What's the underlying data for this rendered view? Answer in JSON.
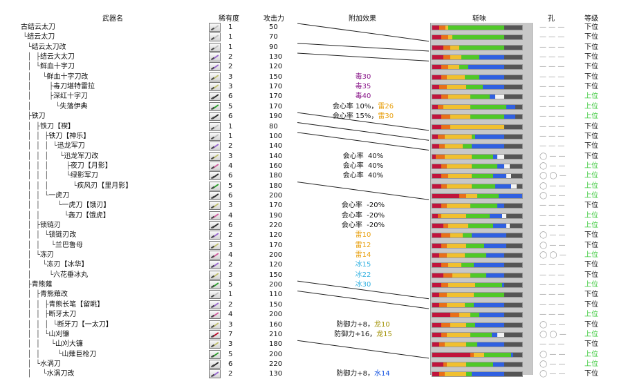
{
  "headers": {
    "name": "武器名",
    "rarity": "稀有度",
    "attack": "攻击力",
    "effect": "附加效果",
    "sharpness": "斩味",
    "slots": "孔",
    "rank": "等级"
  },
  "colors": {
    "red": "#c0143c",
    "orange": "#e8701a",
    "yellow": "#f0c030",
    "green": "#50c828",
    "blue": "#3060e0",
    "white": "#f4f4f4",
    "gray": "#555555",
    "upper": "#37c837",
    "poison": "#8b1a8b",
    "thunder": "#e8a010",
    "ice": "#30b0e0",
    "dragon": "#a09000",
    "water": "#1050e0"
  },
  "rows": [
    {
      "tree": "",
      "name": "古结云太刀",
      "rarity": "1",
      "attack": "50",
      "effect": [],
      "sharp": [
        8,
        7,
        3,
        62
      ],
      "slots": "— — —",
      "rank": "下位",
      "icon": "#c0c0c0"
    },
    {
      "tree": " └",
      "name": "结云太刀",
      "rarity": "1",
      "attack": "70",
      "effect": [],
      "sharp": [
        10,
        8,
        4,
        58
      ],
      "slots": "— — —",
      "rank": "下位",
      "icon": "#c0c0c0"
    },
    {
      "tree": "   └",
      "name": "结云太刀改",
      "rarity": "1",
      "attack": "90",
      "effect": [],
      "sharp": [
        12,
        8,
        10,
        50
      ],
      "slots": "— — —",
      "rank": "下位",
      "icon": "#c0c0c0"
    },
    {
      "tree": "   │  ├",
      "name": "结云大太刀",
      "rarity": "2",
      "attack": "130",
      "effect": [],
      "sharp": [
        12,
        8,
        12,
        20,
        28
      ],
      "slots": "— — —",
      "rank": "下位",
      "icon": "#9a6ad0"
    },
    {
      "tree": "   │  └",
      "name": "鲜血十字刀",
      "rarity": "2",
      "attack": "120",
      "effect": [],
      "sharp": [
        10,
        8,
        12,
        10,
        40
      ],
      "slots": "— — —",
      "rank": "下位",
      "icon": "#9a6ad0"
    },
    {
      "tree": "   │     └",
      "name": "鲜血十字刀改",
      "rarity": "3",
      "attack": "150",
      "effect": [
        {
          "t": "毒30",
          "c": "poison"
        }
      ],
      "sharp": [
        10,
        6,
        20,
        16,
        28
      ],
      "slots": "— — —",
      "rank": "下位",
      "icon": "#c0c070"
    },
    {
      "tree": "   │        ├",
      "name": "毒刀堪特雷拉",
      "rarity": "3",
      "attack": "170",
      "effect": [
        {
          "t": "毒35",
          "c": "poison"
        }
      ],
      "sharp": [
        8,
        8,
        22,
        18,
        24
      ],
      "slots": "— — —",
      "rank": "下位",
      "icon": "#c0c070"
    },
    {
      "tree": "   │        ├",
      "name": "深红十字刀",
      "rarity": "6",
      "attack": "170",
      "effect": [
        {
          "t": "毒40",
          "c": "poison"
        }
      ],
      "sharp": [
        10,
        8,
        24,
        22,
        6,
        10
      ],
      "slots": "— — —",
      "rank": "上位",
      "icon": "#303030"
    },
    {
      "tree": "   │           └",
      "name": "失落伊典",
      "rarity": "5",
      "attack": "170",
      "effect": [
        {
          "t": "会心率 10%，",
          "c": ""
        },
        {
          "t": "雷26",
          "c": "thunder"
        }
      ],
      "sharp": [
        6,
        6,
        30,
        40,
        10
      ],
      "slots": "— — —",
      "rank": "上位",
      "icon": "#30a030"
    },
    {
      "tree": "   ├",
      "name": "铁刀",
      "rarity": "6",
      "attack": "190",
      "effect": [
        {
          "t": "会心率 15%，",
          "c": ""
        },
        {
          "t": "雷30",
          "c": "thunder"
        }
      ],
      "sharp": [
        10,
        10,
        22,
        38,
        12
      ],
      "slots": "— — —",
      "rank": "上位",
      "icon": "#303030"
    },
    {
      "tree": "   │  ├",
      "name": "铁刀【禊】",
      "rarity": "1",
      "attack": "80",
      "effect": [],
      "sharp": [
        10,
        10,
        60
      ],
      "slots": "— — —",
      "rank": "下位",
      "icon": "#c0c0c0"
    },
    {
      "tree": "   │  │  ├",
      "name": "铁刀【神乐】",
      "rarity": "1",
      "attack": "100",
      "effect": [],
      "sharp": [
        6,
        8,
        30,
        4,
        32
      ],
      "slots": "— — —",
      "rank": "下位",
      "icon": "#c0c0c0"
    },
    {
      "tree": "   │  │  │  └",
      "name": "迅龙军刀",
      "rarity": "2",
      "attack": "140",
      "effect": [],
      "sharp": [
        8,
        6,
        20,
        10,
        36
      ],
      "slots": "— — —",
      "rank": "下位",
      "icon": "#9a6ad0"
    },
    {
      "tree": "   │  │  │     └",
      "name": "迅龙军刀改",
      "rarity": "3",
      "attack": "140",
      "effect": [
        {
          "t": "会心率  40%",
          "c": ""
        }
      ],
      "sharp": [
        4,
        10,
        30,
        24,
        4,
        8
      ],
      "slots": "◯ — —",
      "rank": "下位",
      "icon": "#c0c070"
    },
    {
      "tree": "   │  │  │        ├",
      "name": "夜刀【月影】",
      "rarity": "4",
      "attack": "160",
      "effect": [
        {
          "t": "会心率  40%",
          "c": ""
        }
      ],
      "sharp": [
        10,
        6,
        28,
        28,
        8,
        6
      ],
      "slots": "◯ — —",
      "rank": "上位",
      "icon": "#d060a0"
    },
    {
      "tree": "   │  │  │        └",
      "name": "绿影军刀",
      "rarity": "6",
      "attack": "180",
      "effect": [
        {
          "t": "会心率  40%",
          "c": ""
        }
      ],
      "sharp": [
        10,
        8,
        26,
        24,
        14,
        6
      ],
      "slots": "◯ ◯ —",
      "rank": "上位",
      "icon": "#303030"
    },
    {
      "tree": "   │  │  │           └",
      "name": "疾风刃【里月影】",
      "rarity": "5",
      "attack": "180",
      "effect": [],
      "sharp": [
        10,
        6,
        28,
        26,
        18,
        6
      ],
      "slots": "◯ — —",
      "rank": "上位",
      "icon": "#30a030"
    },
    {
      "tree": "   │  │  └",
      "name": "一虎刀",
      "rarity": "6",
      "attack": "200",
      "effect": [],
      "sharp": [
        30,
        8,
        12,
        24,
        26
      ],
      "slots": "◯ — —",
      "rank": "上位",
      "icon": "#303030"
    },
    {
      "tree": "   │  │        └",
      "name": "一虎刀【饿刃】",
      "rarity": "3",
      "attack": "170",
      "effect": [
        {
          "t": "会心率  -20%",
          "c": ""
        }
      ],
      "sharp": [
        10,
        6,
        26,
        30,
        8
      ],
      "slots": "— — —",
      "rank": "下位",
      "icon": "#c0c070"
    },
    {
      "tree": "   │  │           └",
      "name": "轰刀【饿虎】",
      "rarity": "4",
      "attack": "190",
      "effect": [
        {
          "t": "会心率  -20%",
          "c": ""
        }
      ],
      "sharp": [
        6,
        4,
        28,
        26,
        14,
        4
      ],
      "slots": "— — —",
      "rank": "上位",
      "icon": "#d060a0"
    },
    {
      "tree": "   │  ├",
      "name": "锁链刃",
      "rarity": "6",
      "attack": "220",
      "effect": [
        {
          "t": "会心率  -20%",
          "c": ""
        }
      ],
      "sharp": [
        12,
        6,
        22,
        28,
        14,
        4
      ],
      "slots": "— — —",
      "rank": "上位",
      "icon": "#303030"
    },
    {
      "tree": "   │  │  └",
      "name": "锁链刃改",
      "rarity": "2",
      "attack": "120",
      "effect": [
        {
          "t": "雷10",
          "c": "thunder"
        }
      ],
      "sharp": [
        10,
        10,
        14,
        10,
        38
      ],
      "slots": "◯ — —",
      "rank": "下位",
      "icon": "#9a6ad0"
    },
    {
      "tree": "   │  │     └",
      "name": "兰巴鲁母",
      "rarity": "3",
      "attack": "170",
      "effect": [
        {
          "t": "雷12",
          "c": "thunder"
        }
      ],
      "sharp": [
        10,
        6,
        22,
        20,
        24
      ],
      "slots": "◯ — —",
      "rank": "下位",
      "icon": "#c0c070"
    },
    {
      "tree": "   │  └",
      "name": "冻刃",
      "rarity": "4",
      "attack": "200",
      "effect": [
        {
          "t": "雷14",
          "c": "thunder"
        }
      ],
      "sharp": [
        8,
        8,
        20,
        24,
        20
      ],
      "slots": "◯ ◯ —",
      "rank": "上位",
      "icon": "#d060a0"
    },
    {
      "tree": "   │     └",
      "name": "冻刃【冰华】",
      "rarity": "2",
      "attack": "120",
      "effect": [
        {
          "t": "冰15",
          "c": "ice"
        }
      ],
      "sharp": [
        10,
        8,
        14,
        14,
        34
      ],
      "slots": "— — —",
      "rank": "下位",
      "icon": "#9a6ad0"
    },
    {
      "tree": "   │        └",
      "name": "六花垂冰丸",
      "rarity": "3",
      "attack": "150",
      "effect": [
        {
          "t": "冰22",
          "c": "ice"
        }
      ],
      "sharp": [
        12,
        10,
        20,
        18,
        20
      ],
      "slots": "— — —",
      "rank": "下位",
      "icon": "#c0c070"
    },
    {
      "tree": "   ├",
      "name": "青熊薙",
      "rarity": "5",
      "attack": "200",
      "effect": [
        {
          "t": "冰30",
          "c": "ice"
        }
      ],
      "sharp": [
        10,
        8,
        30,
        30,
        2
      ],
      "slots": "— — —",
      "rank": "上位",
      "icon": "#30a030"
    },
    {
      "tree": "   │  ├",
      "name": "青熊薙改",
      "rarity": "1",
      "attack": "110",
      "effect": [],
      "sharp": [
        8,
        8,
        30,
        34
      ],
      "slots": "— — —",
      "rank": "下位",
      "icon": "#c0c0c0"
    },
    {
      "tree": "   │  │  ├",
      "name": "青熊长笔【留眺】",
      "rarity": "2",
      "attack": "150",
      "effect": [],
      "sharp": [
        8,
        8,
        20,
        10,
        34
      ],
      "slots": "— — —",
      "rank": "下位",
      "icon": "#9a6ad0"
    },
    {
      "tree": "   │  │  ├",
      "name": "断牙太刀",
      "rarity": "4",
      "attack": "200",
      "effect": [],
      "sharp": [
        20,
        10,
        12,
        10,
        28
      ],
      "slots": "— — —",
      "rank": "上位",
      "icon": "#d060a0"
    },
    {
      "tree": "   │  │  │  └",
      "name": "断牙刀【一太刀】",
      "rarity": "3",
      "attack": "160",
      "effect": [
        {
          "t": "防御力+8，",
          "c": ""
        },
        {
          "t": "龙10",
          "c": "dragon"
        }
      ],
      "sharp": [
        10,
        10,
        18,
        10,
        32
      ],
      "slots": "◯ — —",
      "rank": "下位",
      "icon": "#c0c070"
    },
    {
      "tree": "   │  │  └",
      "name": "山刈镰",
      "rarity": "7",
      "attack": "210",
      "effect": [
        {
          "t": "防御力+16，",
          "c": ""
        },
        {
          "t": "龙15",
          "c": "dragon"
        }
      ],
      "sharp": [
        10,
        6,
        26,
        24,
        6,
        8
      ],
      "slots": "◯ ◯ —",
      "rank": "上位",
      "icon": "#c01030"
    },
    {
      "tree": "   │  │     └",
      "name": "山刈大镰",
      "rarity": "3",
      "attack": "180",
      "effect": [],
      "sharp": [
        8,
        6,
        24,
        12,
        30
      ],
      "slots": "— — —",
      "rank": "下位",
      "icon": "#c0c070"
    },
    {
      "tree": "   │  │        └",
      "name": "山薙巨枪刀",
      "rarity": "5",
      "attack": "200",
      "effect": [],
      "sharp": [
        42,
        4,
        12,
        30,
        2
      ],
      "slots": "◯ — —",
      "rank": "上位",
      "icon": "#30a030"
    },
    {
      "tree": "   │  └",
      "name": "水涡刀",
      "rarity": "6",
      "attack": "220",
      "effect": [],
      "sharp": [
        12,
        4,
        22,
        30,
        12
      ],
      "slots": "◯ — —",
      "rank": "上位",
      "icon": "#303030"
    },
    {
      "tree": "   │     └",
      "name": "水涡刀改",
      "rarity": "2",
      "attack": "130",
      "effect": [
        {
          "t": "防御力+8，",
          "c": ""
        },
        {
          "t": "水14",
          "c": "water"
        }
      ],
      "sharp": [
        8,
        6,
        24,
        6,
        36
      ],
      "slots": "◯ — —",
      "rank": "下位",
      "icon": "#9a6ad0"
    }
  ]
}
